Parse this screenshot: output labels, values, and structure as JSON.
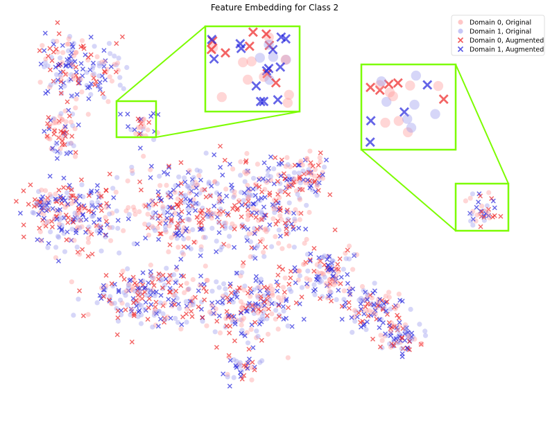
{
  "chart_data": {
    "type": "scatter",
    "title": "Feature Embedding for Class 2",
    "xlabel": "",
    "ylabel": "",
    "axes_visible": false,
    "grid": false,
    "legend_position": "top-right",
    "legend": [
      {
        "label": "Domain 0, Original",
        "marker": "circle",
        "color": "#ff9999"
      },
      {
        "label": "Domain 1, Original",
        "marker": "circle",
        "color": "#9999ee"
      },
      {
        "label": "Domain 0, Augmented",
        "marker": "x",
        "color": "#ee2222"
      },
      {
        "label": "Domain 1, Augmented",
        "marker": "x",
        "color": "#2222dd"
      }
    ],
    "inset_color": "#7cfc00",
    "series": [
      {
        "name": "Domain 0, Original",
        "marker": "circle",
        "color": "#ff9999"
      },
      {
        "name": "Domain 1, Original",
        "marker": "circle",
        "color": "#9999ee"
      },
      {
        "name": "Domain 0, Augmented",
        "marker": "x",
        "color": "#ee2222"
      },
      {
        "name": "Domain 1, Augmented",
        "marker": "x",
        "color": "#2222dd"
      }
    ]
  }
}
